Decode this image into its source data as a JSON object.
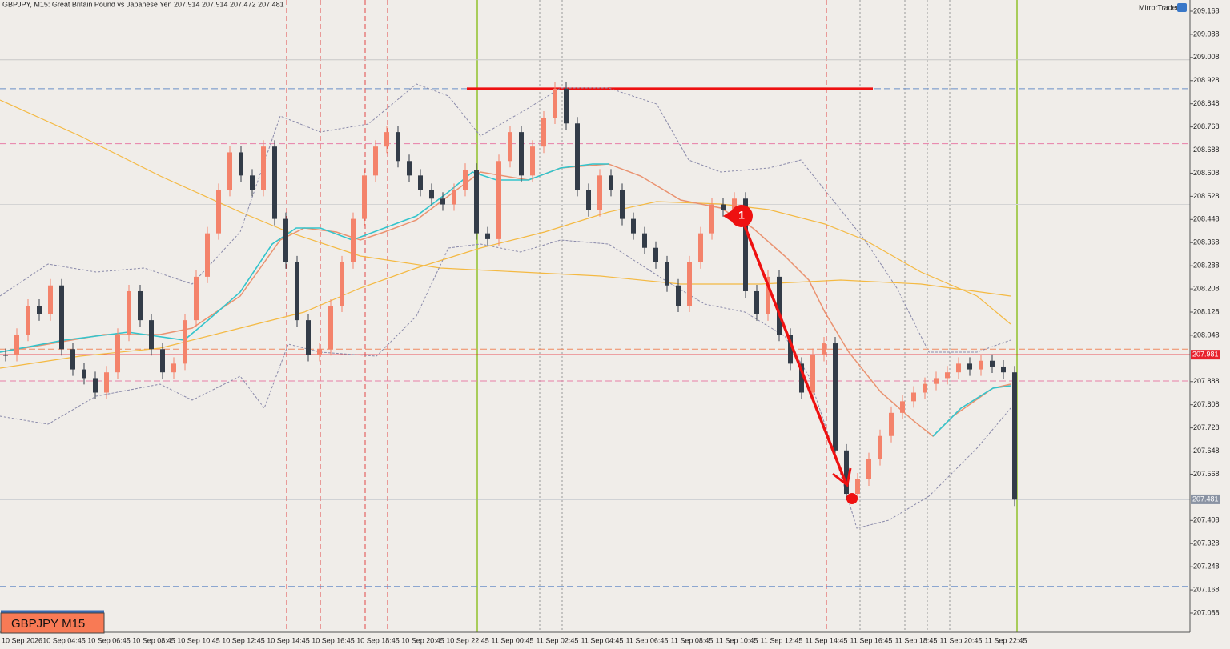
{
  "header": "GBPJPY, M15:  Great Britain Pound vs Japanese Yen  207.914 207.914 207.472 207.481",
  "brand": "MirrorTrader",
  "badge": "GBPJPY M15",
  "annotation": "1",
  "price_axis": {
    "ticks": [
      209.168,
      209.088,
      209.008,
      208.928,
      208.848,
      208.768,
      208.688,
      208.608,
      208.528,
      208.448,
      208.368,
      208.288,
      208.208,
      208.128,
      208.048,
      207.888,
      207.808,
      207.728,
      207.648,
      207.568,
      207.408,
      207.328,
      207.248,
      207.168,
      207.088
    ]
  },
  "price_tags": [
    {
      "value": 207.981,
      "color": "#e8212b"
    },
    {
      "value": 207.481,
      "color": "#8a93a3"
    }
  ],
  "levels": [
    {
      "price": 209.0,
      "color": "#c8c8c8",
      "dash": false
    },
    {
      "price": 208.9,
      "color": "#6a8fc8",
      "dash": true
    },
    {
      "price": 208.71,
      "color": "#e87fa8",
      "dash": true
    },
    {
      "price": 208.5,
      "color": "#d4d4d4",
      "dash": false
    },
    {
      "price": 208.0,
      "color": "#f08a60",
      "dash": true
    },
    {
      "price": 207.981,
      "color": "#e8212b",
      "dash": false
    },
    {
      "price": 207.89,
      "color": "#e87fa8",
      "dash": true
    },
    {
      "price": 207.481,
      "color": "#9aa3b3",
      "dash": false
    },
    {
      "price": 207.18,
      "color": "#6a8fc8",
      "dash": true
    }
  ],
  "resistance": {
    "price": 208.9,
    "color": "#ee1111"
  },
  "time_axis": {
    "labels": [
      "10 Sep 2026",
      "10 Sep 04:45",
      "10 Sep 06:45",
      "10 Sep 08:45",
      "10 Sep 10:45",
      "10 Sep 12:45",
      "10 Sep 14:45",
      "10 Sep 16:45",
      "10 Sep 18:45",
      "10 Sep 20:45",
      "10 Sep 22:45",
      "11 Sep 00:45",
      "11 Sep 02:45",
      "11 Sep 04:45",
      "11 Sep 06:45",
      "11 Sep 08:45",
      "11 Sep 10:45",
      "11 Sep 12:45",
      "11 Sep 14:45",
      "11 Sep 16:45",
      "11 Sep 18:45",
      "11 Sep 20:45",
      "11 Sep 22:45"
    ]
  },
  "candles": {
    "up_color": "#f4836b",
    "down_color": "#333c48",
    "closes": [
      207.98,
      208.05,
      208.15,
      208.12,
      208.22,
      208.0,
      207.93,
      207.9,
      207.85,
      207.92,
      208.05,
      208.2,
      208.1,
      208.0,
      207.92,
      207.95,
      208.1,
      208.25,
      208.4,
      208.55,
      208.68,
      208.6,
      208.55,
      208.7,
      208.45,
      208.3,
      208.1,
      207.98,
      208.0,
      208.15,
      208.3,
      208.45,
      208.6,
      208.7,
      208.75,
      208.65,
      208.6,
      208.55,
      208.52,
      208.5,
      208.55,
      208.62,
      208.4,
      208.38,
      208.65,
      208.75,
      208.6,
      208.7,
      208.8,
      208.9,
      208.78,
      208.55,
      208.48,
      208.6,
      208.55,
      208.45,
      208.4,
      208.35,
      208.3,
      208.22,
      208.15,
      208.3,
      208.4,
      208.5,
      208.48,
      208.52,
      208.2,
      208.12,
      208.25,
      208.05,
      207.95,
      207.85,
      207.98,
      208.02,
      207.65,
      207.5,
      207.55,
      207.62,
      207.7,
      207.78,
      207.82,
      207.85,
      207.88,
      207.9,
      207.92,
      207.95,
      207.93,
      207.96,
      207.94,
      207.92,
      207.48
    ]
  }
}
